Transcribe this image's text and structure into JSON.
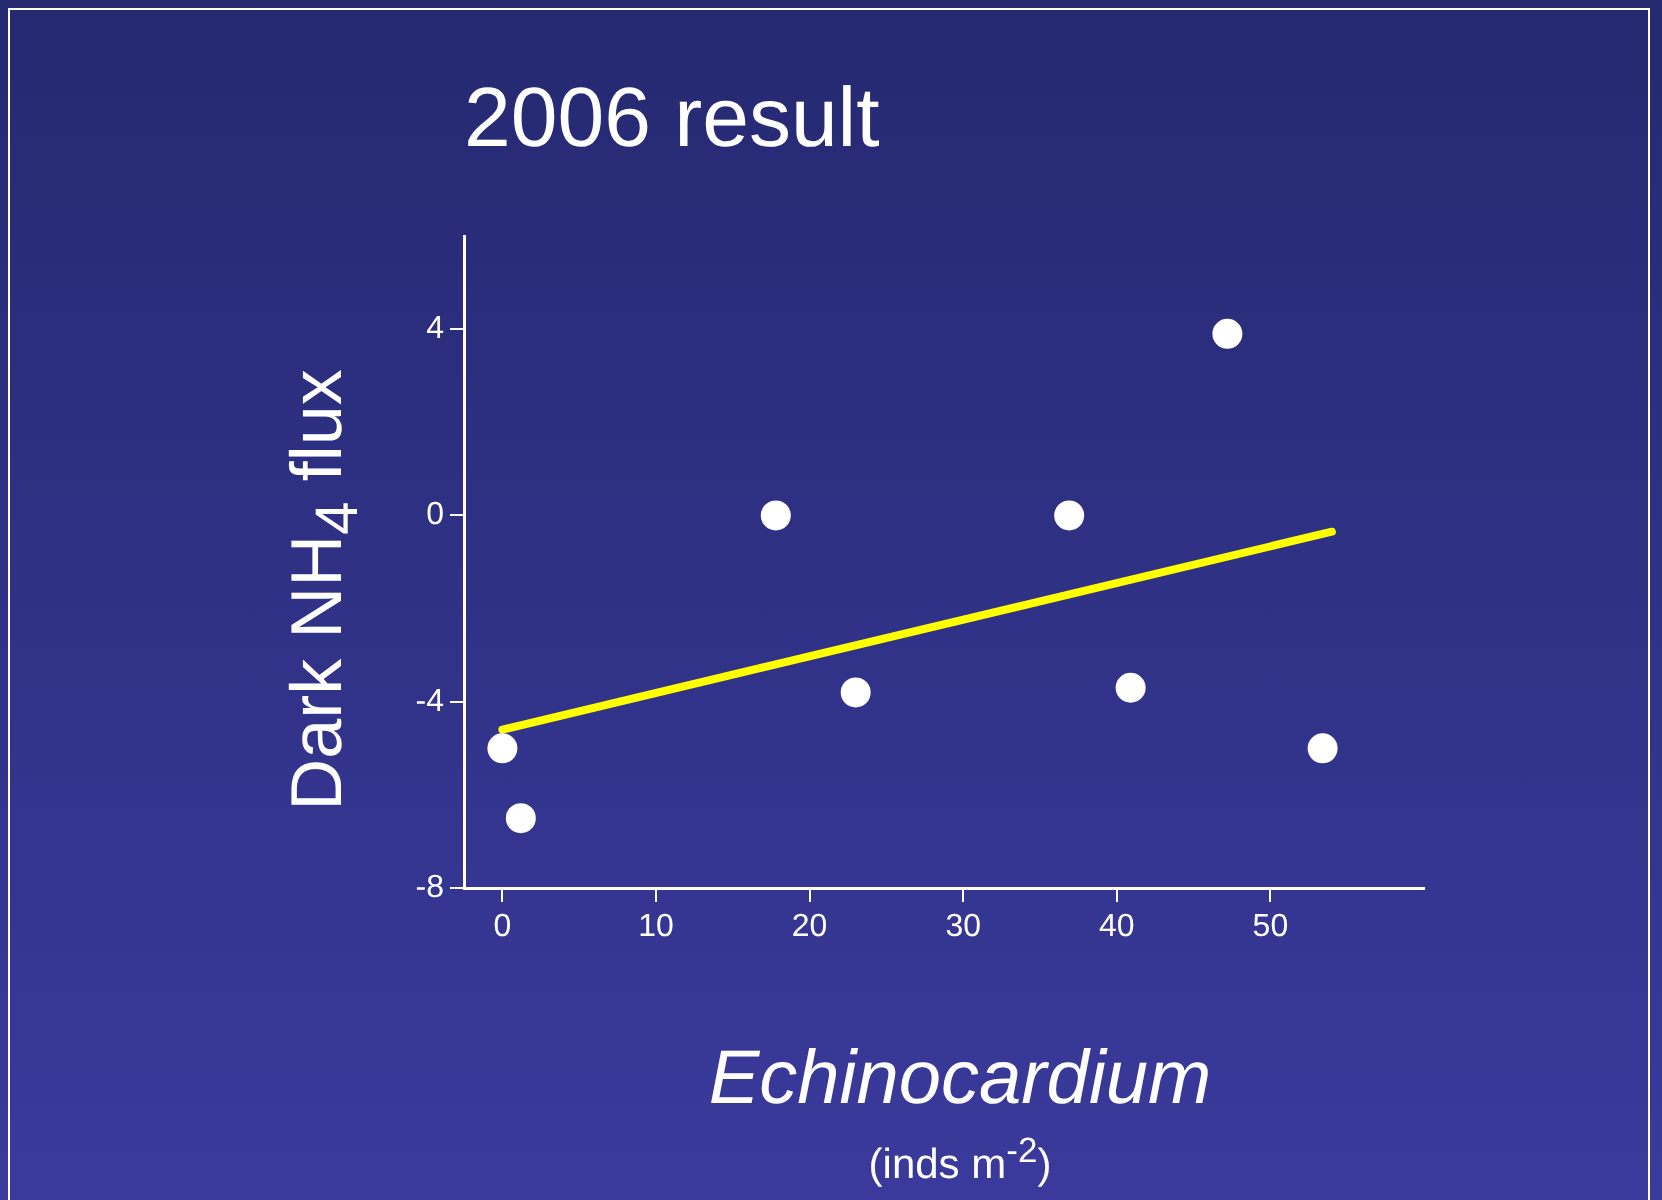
{
  "chart_data": {
    "type": "scatter",
    "title": "2006 result",
    "xlabel": "Echinocardium",
    "ylabel": "Dark NH$_{4}$ flux",
    "annotations": [
      "(inds m$^{-2}$)"
    ],
    "x": [
      0,
      1.2,
      17.8,
      23,
      36.9,
      40.9,
      47.2,
      53.4
    ],
    "xlim": [
      -2.5,
      60
    ],
    "xticks": [
      0,
      10,
      20,
      30,
      40,
      50
    ],
    "ylim": [
      -8,
      6
    ],
    "yticks": [
      -8,
      -4,
      0,
      4
    ],
    "grid": false,
    "legend": false,
    "series": [
      {
        "color": "#ffffff",
        "marker": "circle",
        "values": [
          -5.0,
          -6.5,
          0,
          -3.8,
          0,
          -3.7,
          3.9,
          -5.0
        ]
      },
      {
        "type": "line",
        "color": "#ffff00",
        "marker": "none",
        "x": [
          0,
          54
        ],
        "values": [
          -4.6,
          -0.35
        ]
      }
    ]
  }
}
